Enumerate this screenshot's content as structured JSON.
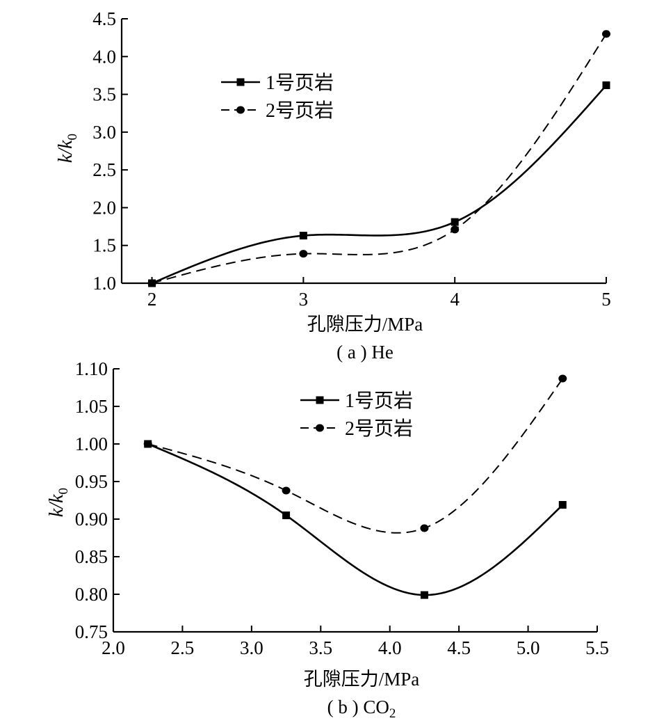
{
  "chart_data": [
    {
      "type": "line",
      "caption": "( a ) He",
      "xlabel": "孔隙压力/MPa",
      "ylabel_main": "k/k",
      "ylabel_sub": "0",
      "xlim": [
        1.8,
        5.0
      ],
      "ylim": [
        1.0,
        4.5
      ],
      "xticks": [
        2,
        3,
        4,
        5
      ],
      "yticks": [
        1.0,
        1.5,
        2.0,
        2.5,
        3.0,
        3.5,
        4.0,
        4.5
      ],
      "xtick_labels": [
        "2",
        "3",
        "4",
        "5"
      ],
      "ytick_labels": [
        "1.0",
        "1.5",
        "2.0",
        "2.5",
        "3.0",
        "3.5",
        "4.0",
        "4.5"
      ],
      "grid": false,
      "legend_position": "top-left",
      "x": [
        2,
        3,
        4,
        5
      ],
      "series": [
        {
          "name": "1号页岩",
          "marker": "square",
          "line": "solid",
          "values": [
            1.0,
            1.63,
            1.81,
            3.62
          ]
        },
        {
          "name": "2号页岩",
          "marker": "circle",
          "line": "dashed",
          "values": [
            1.0,
            1.39,
            1.71,
            4.3
          ]
        }
      ]
    },
    {
      "type": "line",
      "caption_main": "( b ) CO",
      "caption_sub": "2",
      "xlabel": "孔隙压力/MPa",
      "ylabel_main": "k/k",
      "ylabel_sub": "0",
      "xlim": [
        2.0,
        5.5
      ],
      "ylim": [
        0.75,
        1.1
      ],
      "xticks": [
        2.0,
        2.5,
        3.0,
        3.5,
        4.0,
        4.5,
        5.0,
        5.5
      ],
      "yticks": [
        0.75,
        0.8,
        0.85,
        0.9,
        0.95,
        1.0,
        1.05,
        1.1
      ],
      "xtick_labels": [
        "2.0",
        "2.5",
        "3.0",
        "3.5",
        "4.0",
        "4.5",
        "5.0",
        "5.5"
      ],
      "ytick_labels": [
        "0.75",
        "0.80",
        "0.85",
        "0.90",
        "0.95",
        "1.00",
        "1.05",
        "1.10"
      ],
      "grid": false,
      "legend_position": "top-center",
      "x": [
        2.25,
        3.25,
        4.25,
        5.25
      ],
      "series": [
        {
          "name": "1号页岩",
          "marker": "square",
          "line": "solid",
          "values": [
            1.0,
            0.905,
            0.799,
            0.919
          ]
        },
        {
          "name": "2号页岩",
          "marker": "circle",
          "line": "dashed",
          "values": [
            1.0,
            0.938,
            0.888,
            1.087
          ]
        }
      ]
    }
  ]
}
